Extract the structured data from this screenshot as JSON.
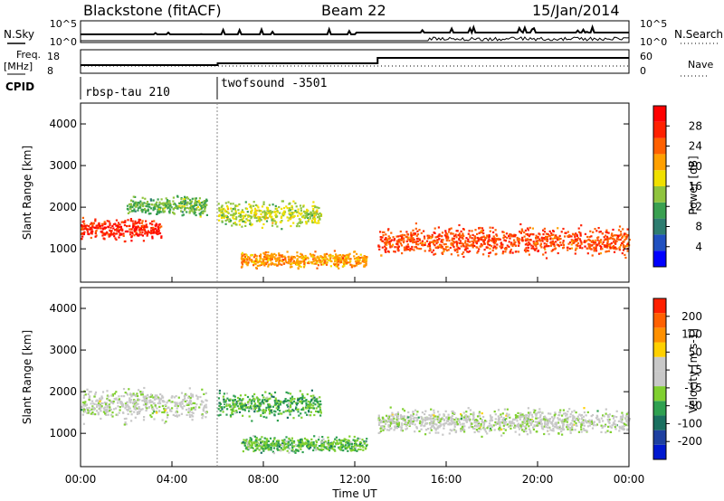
{
  "header": {
    "station": "Blackstone (fitACF)",
    "beam": "Beam 22",
    "date": "15/Jan/2014"
  },
  "noise_panel": {
    "left_label": "N.Sky",
    "right_label": "N.Search",
    "left_ticks": [
      "10^5",
      "10^0"
    ],
    "right_ticks": [
      "10^5",
      "10^0"
    ]
  },
  "freq_panel": {
    "left_label_line1": "Freq.",
    "left_label_line2": "[MHz]",
    "right_label": "Nave",
    "left_ticks": [
      "18",
      "8"
    ],
    "right_ticks": [
      "60",
      "0"
    ]
  },
  "cpid": {
    "label": "CPID",
    "segments": [
      {
        "name": "rbsp-tau 210",
        "start_hour": 0.0
      },
      {
        "name": "twofsound -3501",
        "start_hour": 6.0
      }
    ]
  },
  "colors": {
    "power_scale": [
      "#0000ff",
      "#2050c0",
      "#2e7d70",
      "#39a050",
      "#8fc43e",
      "#f0e000",
      "#ffa000",
      "#ff6000",
      "#ff2000",
      "#ff0000"
    ],
    "velocity_scale": [
      "#0018d0",
      "#1e40a0",
      "#1a7060",
      "#2ea050",
      "#80d030",
      "#c8c8c8",
      "#c8c8c8",
      "#ffd000",
      "#ff9000",
      "#ff6000",
      "#ff2000"
    ]
  },
  "chart_data": [
    {
      "type": "heatmap",
      "name": "power",
      "ylabel": "Slant Range [km]",
      "yticks": [
        1000,
        2000,
        3000,
        4000
      ],
      "ylim": [
        200,
        4500
      ],
      "xlim": [
        0,
        24
      ],
      "colorbar": {
        "label": "Power [dB]",
        "ticks": [
          "28",
          "24",
          "20",
          "16",
          "12",
          "8",
          "4"
        ],
        "range": [
          0,
          30
        ]
      },
      "echo_regions": [
        {
          "t0": 0.0,
          "t1": 3.5,
          "r_center": 1500,
          "r_width": 350,
          "value": 26
        },
        {
          "t0": 2.0,
          "t1": 5.5,
          "r_center": 2050,
          "r_width": 300,
          "value": 12
        },
        {
          "t0": 6.0,
          "t1": 10.5,
          "r_center": 1850,
          "r_width": 400,
          "value": 15
        },
        {
          "t0": 7.0,
          "t1": 12.5,
          "r_center": 750,
          "r_width": 250,
          "value": 20
        },
        {
          "t0": 13.0,
          "t1": 24.0,
          "r_center": 1200,
          "r_width": 450,
          "value": 24
        }
      ]
    },
    {
      "type": "heatmap",
      "name": "velocity",
      "ylabel": "Slant Range [km]",
      "yticks": [
        1000,
        2000,
        3000,
        4000
      ],
      "ylim": [
        200,
        4500
      ],
      "xlim": [
        0,
        24
      ],
      "xlabel": "Time UT",
      "xticks": [
        "00:00",
        "04:00",
        "08:00",
        "12:00",
        "16:00",
        "20:00",
        "00:00"
      ],
      "colorbar": {
        "label": "Velocity [m s-1]",
        "ticks": [
          "200",
          "100",
          "50",
          "15",
          "-15",
          "-50",
          "-100",
          "-200"
        ],
        "range": [
          -250,
          250
        ]
      },
      "echo_regions": [
        {
          "t0": 0.0,
          "t1": 5.5,
          "r_center": 1700,
          "r_width": 500,
          "value": 0
        },
        {
          "t0": 6.0,
          "t1": 10.5,
          "r_center": 1700,
          "r_width": 400,
          "value": -70
        },
        {
          "t0": 7.0,
          "t1": 12.5,
          "r_center": 750,
          "r_width": 250,
          "value": -60
        },
        {
          "t0": 13.0,
          "t1": 24.0,
          "r_center": 1300,
          "r_width": 400,
          "value": 0
        }
      ]
    }
  ]
}
